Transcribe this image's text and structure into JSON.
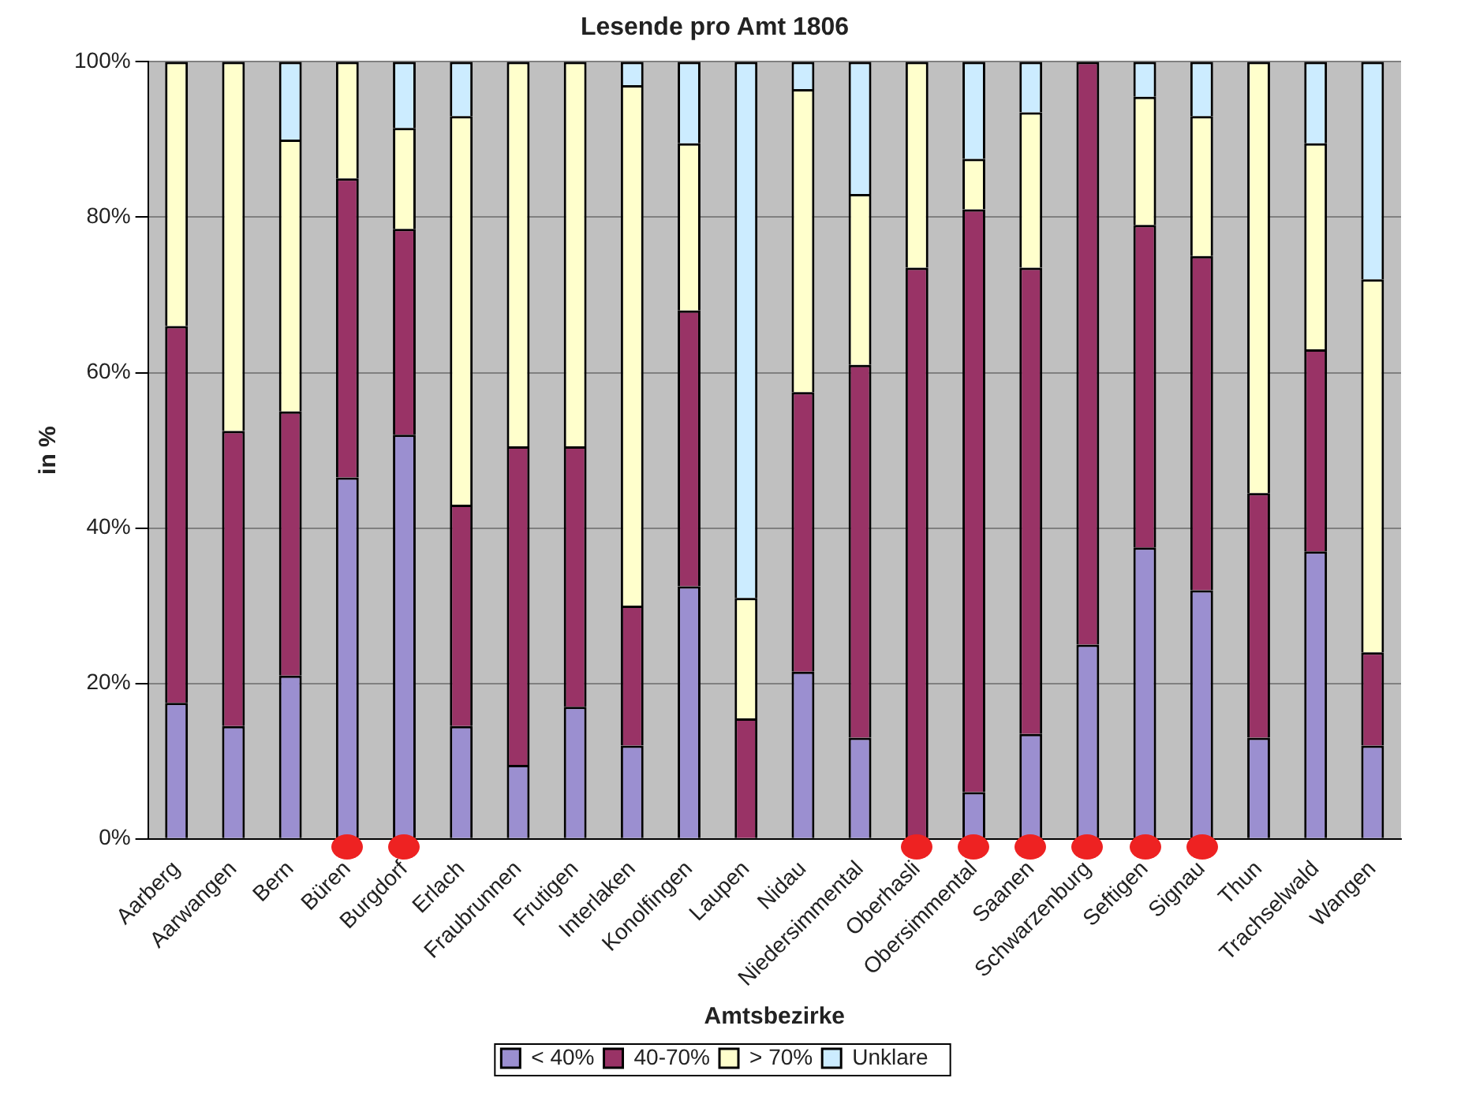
{
  "chart_data": {
    "type": "bar",
    "title": "Lesende pro Amt 1806",
    "xlabel": "Amtsbezirke",
    "ylabel": "in %",
    "categories": [
      "Aarberg",
      "Aarwangen",
      "Bern",
      "Büren",
      "Burgdorf",
      "Erlach",
      "Fraubrunnen",
      "Frutigen",
      "Interlaken",
      "Konolfingen",
      "Laupen",
      "Nidau",
      "Niedersimmental",
      "Oberhasli",
      "Obersimmental",
      "Saanen",
      "Schwarzenburg",
      "Seftigen",
      "Signau",
      "Thun",
      "Trachselwald",
      "Wangen"
    ],
    "series": [
      {
        "name": "< 40%",
        "color": "#9b8fd0",
        "values": [
          17.5,
          14.5,
          21,
          46.5,
          52,
          14.5,
          9.5,
          17,
          12,
          32.5,
          0,
          21.5,
          13,
          0,
          6,
          13.5,
          25,
          37.5,
          32,
          13,
          37,
          12
        ]
      },
      {
        "name": "40-70%",
        "color": "#993366",
        "values": [
          48.5,
          38,
          34,
          38.5,
          26.5,
          28.5,
          41,
          33.5,
          18,
          35.5,
          15.5,
          36,
          48,
          73.5,
          75,
          60,
          75,
          41.5,
          43,
          31.5,
          26,
          12
        ]
      },
      {
        "name": "> 70%",
        "color": "#ffffcc",
        "values": [
          34,
          47.5,
          35,
          15,
          13,
          50,
          49.5,
          49.5,
          67,
          21.5,
          15.5,
          39,
          22,
          26.5,
          6.5,
          20,
          0,
          16.5,
          18,
          55.5,
          26.5,
          48
        ]
      },
      {
        "name": "Unklare",
        "color": "#ccecff",
        "values": [
          0,
          0,
          10,
          0,
          8.5,
          7,
          0,
          0,
          3,
          10.5,
          69,
          3.5,
          17,
          0,
          12.5,
          6.5,
          0,
          4.5,
          7,
          0,
          10.5,
          28
        ]
      }
    ],
    "stacked": true,
    "ylim": [
      0,
      100
    ],
    "yticks": [
      {
        "value": 0,
        "label": "0%"
      },
      {
        "value": 20,
        "label": "20%"
      },
      {
        "value": 40,
        "label": "40%"
      },
      {
        "value": 60,
        "label": "60%"
      },
      {
        "value": 80,
        "label": "80%"
      },
      {
        "value": 100,
        "label": "100%"
      }
    ],
    "grid": "y",
    "legend": "bottom"
  }
}
